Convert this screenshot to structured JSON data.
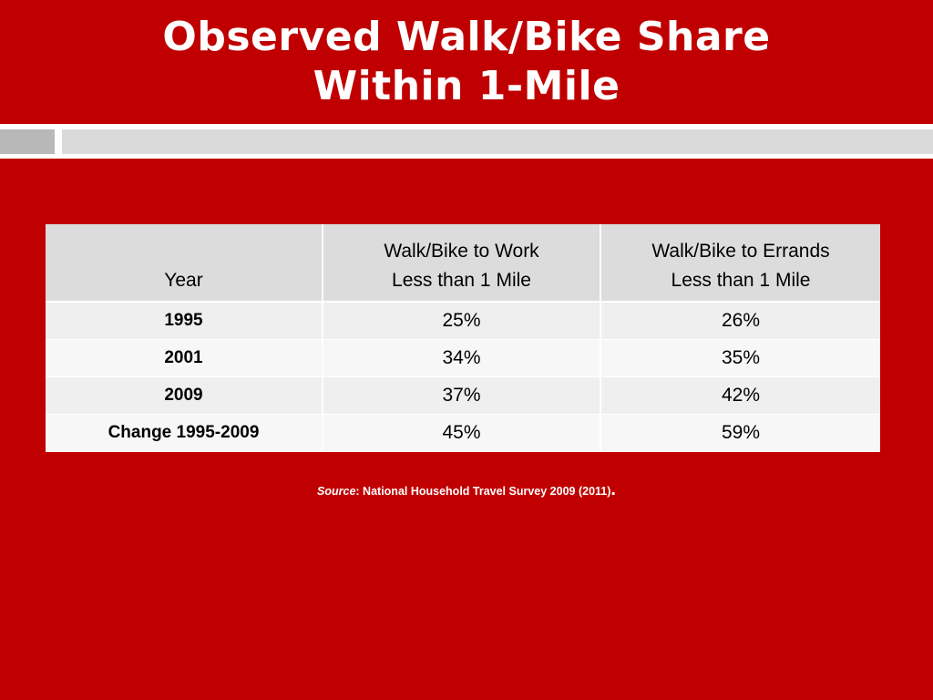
{
  "slide": {
    "title_line1": "Observed Walk/Bike Share",
    "title_line2": "Within 1-Mile"
  },
  "table": {
    "headers": {
      "year": "Year",
      "work_line1": "Walk/Bike to Work",
      "work_line2": "Less than 1 Mile",
      "errands_line1": "Walk/Bike to Errands",
      "errands_line2": "Less than 1 Mile"
    },
    "rows": [
      {
        "year": "1995",
        "work": "25%",
        "errands": "26%"
      },
      {
        "year": "2001",
        "work": "34%",
        "errands": "35%"
      },
      {
        "year": "2009",
        "work": "37%",
        "errands": "42%"
      },
      {
        "year": "Change 1995-2009",
        "work": "45%",
        "errands": "59%"
      }
    ]
  },
  "source": {
    "label": "Source",
    "text": ": National Household Travel Survey 2009 (2011)",
    "period": "."
  },
  "colors": {
    "background": "#c00000",
    "header_fill": "#dcdcdc",
    "row_fill": "#efefef",
    "divider_light": "#dadada",
    "divider_dark": "#b8b8b8"
  }
}
